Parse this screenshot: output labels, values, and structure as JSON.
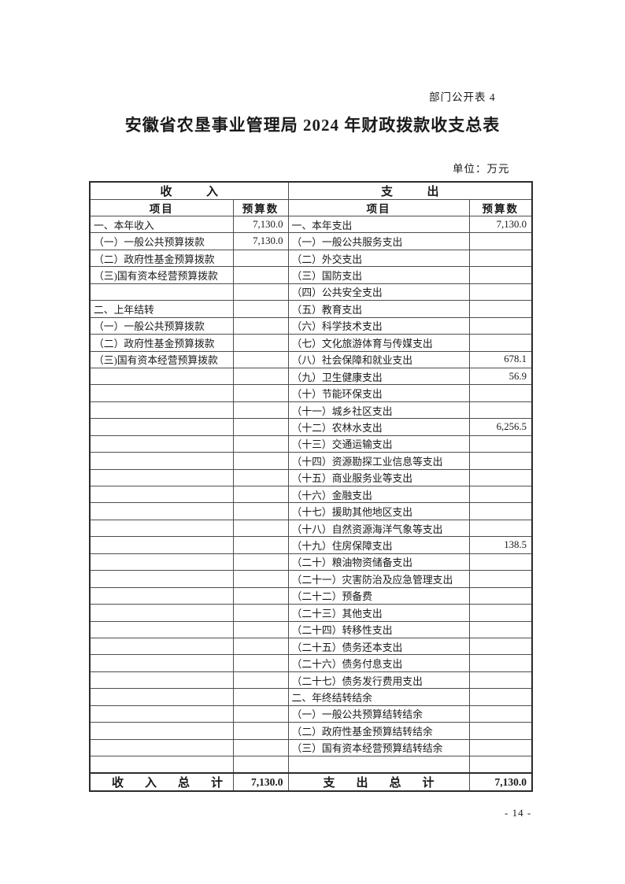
{
  "page": {
    "doc_label": "部门公开表 4",
    "title": "安徽省农垦事业管理局 2024 年财政拨款收支总表",
    "unit_label": "单位：万元",
    "page_number": "- 14 -"
  },
  "table": {
    "income_header": "收入",
    "expense_header": "支出",
    "item_col_header": "项目",
    "budget_col_header": "预算数",
    "rows": [
      {
        "income_item": "一、本年收入",
        "income_value": "7,130.0",
        "expense_item": "一、本年支出",
        "expense_value": "7,130.0"
      },
      {
        "income_item": "（一）一般公共预算拨款",
        "income_value": "7,130.0",
        "expense_item": "（一）一般公共服务支出",
        "expense_value": ""
      },
      {
        "income_item": "（二）政府性基金预算拨款",
        "income_value": "",
        "expense_item": "（二）外交支出",
        "expense_value": ""
      },
      {
        "income_item": "（三)国有资本经营预算拨款",
        "income_value": "",
        "expense_item": "（三）国防支出",
        "expense_value": ""
      },
      {
        "income_item": "",
        "income_value": "",
        "expense_item": "（四）公共安全支出",
        "expense_value": ""
      },
      {
        "income_item": "二、上年结转",
        "income_value": "",
        "expense_item": "（五）教育支出",
        "expense_value": ""
      },
      {
        "income_item": "（一）一般公共预算拨款",
        "income_value": "",
        "expense_item": "（六）科学技术支出",
        "expense_value": ""
      },
      {
        "income_item": "（二）政府性基金预算拨款",
        "income_value": "",
        "expense_item": "（七）文化旅游体育与传媒支出",
        "expense_value": ""
      },
      {
        "income_item": "（三)国有资本经营预算拨款",
        "income_value": "",
        "expense_item": "（八）社会保障和就业支出",
        "expense_value": "678.1"
      },
      {
        "income_item": "",
        "income_value": "",
        "expense_item": "（九）卫生健康支出",
        "expense_value": "56.9"
      },
      {
        "income_item": "",
        "income_value": "",
        "expense_item": "（十）节能环保支出",
        "expense_value": ""
      },
      {
        "income_item": "",
        "income_value": "",
        "expense_item": "（十一）城乡社区支出",
        "expense_value": ""
      },
      {
        "income_item": "",
        "income_value": "",
        "expense_item": "（十二）农林水支出",
        "expense_value": "6,256.5"
      },
      {
        "income_item": "",
        "income_value": "",
        "expense_item": "（十三）交通运输支出",
        "expense_value": ""
      },
      {
        "income_item": "",
        "income_value": "",
        "expense_item": "（十四）资源勘探工业信息等支出",
        "expense_value": ""
      },
      {
        "income_item": "",
        "income_value": "",
        "expense_item": "（十五）商业服务业等支出",
        "expense_value": ""
      },
      {
        "income_item": "",
        "income_value": "",
        "expense_item": "（十六）金融支出",
        "expense_value": ""
      },
      {
        "income_item": "",
        "income_value": "",
        "expense_item": "（十七）援助其他地区支出",
        "expense_value": ""
      },
      {
        "income_item": "",
        "income_value": "",
        "expense_item": "（十八）自然资源海洋气象等支出",
        "expense_value": ""
      },
      {
        "income_item": "",
        "income_value": "",
        "expense_item": "（十九）住房保障支出",
        "expense_value": "138.5"
      },
      {
        "income_item": "",
        "income_value": "",
        "expense_item": "（二十）粮油物资储备支出",
        "expense_value": ""
      },
      {
        "income_item": "",
        "income_value": "",
        "expense_item": "（二十一）灾害防治及应急管理支出",
        "expense_value": ""
      },
      {
        "income_item": "",
        "income_value": "",
        "expense_item": "（二十二）预备费",
        "expense_value": ""
      },
      {
        "income_item": "",
        "income_value": "",
        "expense_item": "（二十三）其他支出",
        "expense_value": ""
      },
      {
        "income_item": "",
        "income_value": "",
        "expense_item": "（二十四）转移性支出",
        "expense_value": ""
      },
      {
        "income_item": "",
        "income_value": "",
        "expense_item": "（二十五）债务还本支出",
        "expense_value": ""
      },
      {
        "income_item": "",
        "income_value": "",
        "expense_item": "（二十六）债务付息支出",
        "expense_value": ""
      },
      {
        "income_item": "",
        "income_value": "",
        "expense_item": "（二十七）债务发行费用支出",
        "expense_value": ""
      },
      {
        "income_item": "",
        "income_value": "",
        "expense_item": "二、年终结转结余",
        "expense_value": ""
      },
      {
        "income_item": "",
        "income_value": "",
        "expense_item": "（一）一般公共预算结转结余",
        "expense_value": ""
      },
      {
        "income_item": "",
        "income_value": "",
        "expense_item": "（二）政府性基金预算结转结余",
        "expense_value": ""
      },
      {
        "income_item": "",
        "income_value": "",
        "expense_item": "（三）国有资本经营预算结转结余",
        "expense_value": ""
      },
      {
        "income_item": "",
        "income_value": "",
        "expense_item": "",
        "expense_value": ""
      }
    ],
    "total": {
      "income_label": "收入总计",
      "income_value": "7,130.0",
      "expense_label": "支出总计",
      "expense_value": "7,130.0"
    }
  }
}
